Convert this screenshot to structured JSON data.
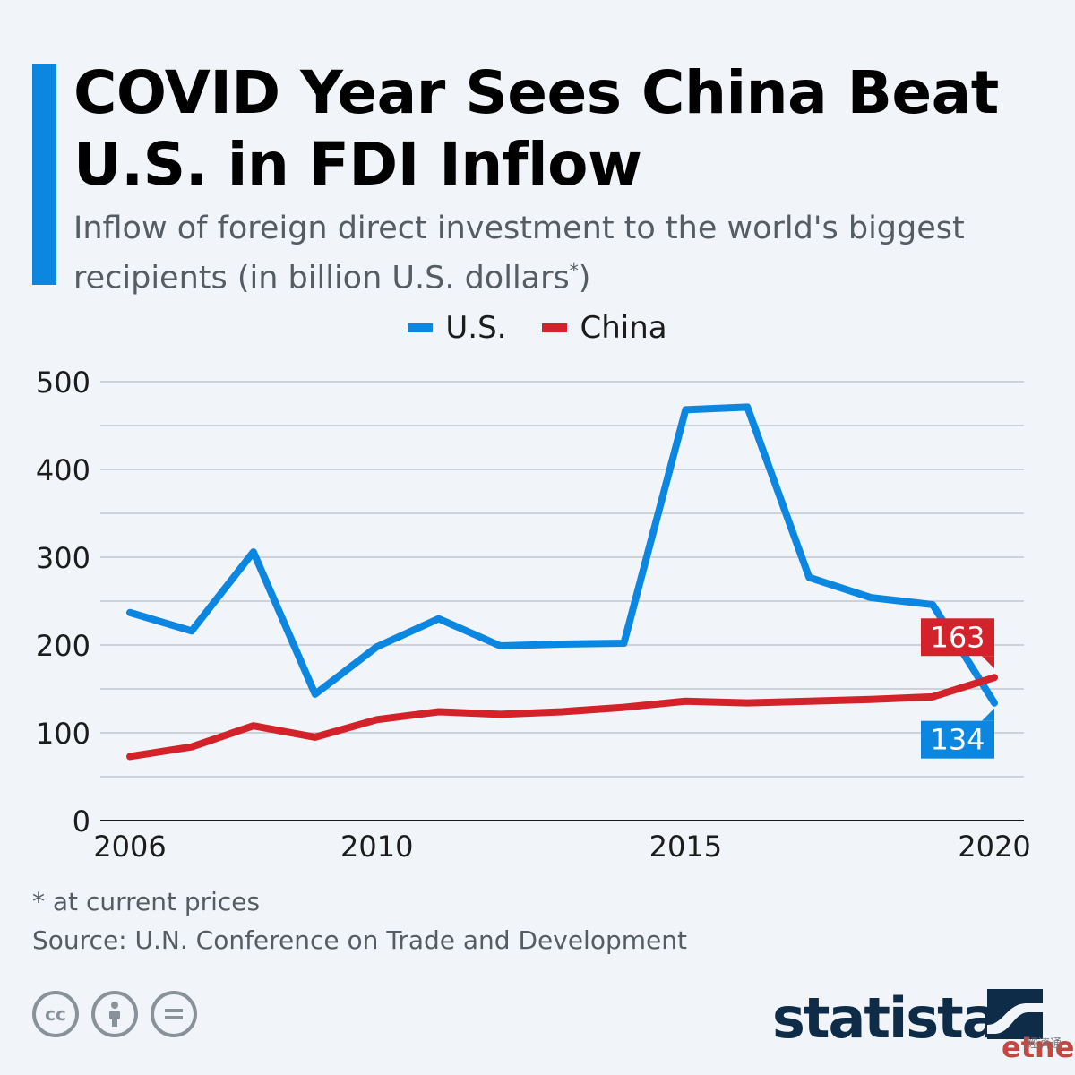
{
  "title": "COVID Year Sees China Beat U.S. in FDI Inflow",
  "subtitle": "Inflow of foreign direct investment to the world's biggest recipients (in billion U.S. dollars",
  "subtitle_mark": "*",
  "subtitle_close": ")",
  "legend": [
    {
      "label": "U.S.",
      "color": "#0c87e1"
    },
    {
      "label": "China",
      "color": "#d3222a"
    }
  ],
  "footnote": "* at current prices",
  "source": "Source: U.N. Conference on Trade and Development",
  "brand": "statista",
  "watermark": "etnet",
  "watermark_cn": "經濟通",
  "cc_icons": [
    "cc-icon",
    "attribution-icon",
    "no-derivatives-icon"
  ],
  "chart_data": {
    "type": "line",
    "x": [
      2006,
      2007,
      2008,
      2009,
      2010,
      2011,
      2012,
      2013,
      2014,
      2015,
      2016,
      2017,
      2018,
      2019,
      2020
    ],
    "series": [
      {
        "name": "U.S.",
        "color": "#0c87e1",
        "values": [
          237,
          216,
          306,
          144,
          198,
          230,
          199,
          201,
          202,
          468,
          471,
          277,
          254,
          246,
          134
        ]
      },
      {
        "name": "China",
        "color": "#d3222a",
        "values": [
          73,
          84,
          108,
          95,
          115,
          124,
          121,
          124,
          129,
          136,
          134,
          136,
          138,
          141,
          163
        ]
      }
    ],
    "x_ticks": [
      2006,
      2010,
      2015,
      2020
    ],
    "y_ticks": [
      0,
      100,
      200,
      300,
      400,
      500
    ],
    "ylim": [
      0,
      500
    ],
    "xlim": [
      2006,
      2020
    ],
    "grid": true,
    "legend_position": "top-center",
    "end_labels": [
      {
        "series": "China",
        "text": "163",
        "color": "#d3222a",
        "position": "above"
      },
      {
        "series": "U.S.",
        "text": "134",
        "color": "#0c87e1",
        "position": "below"
      }
    ]
  }
}
